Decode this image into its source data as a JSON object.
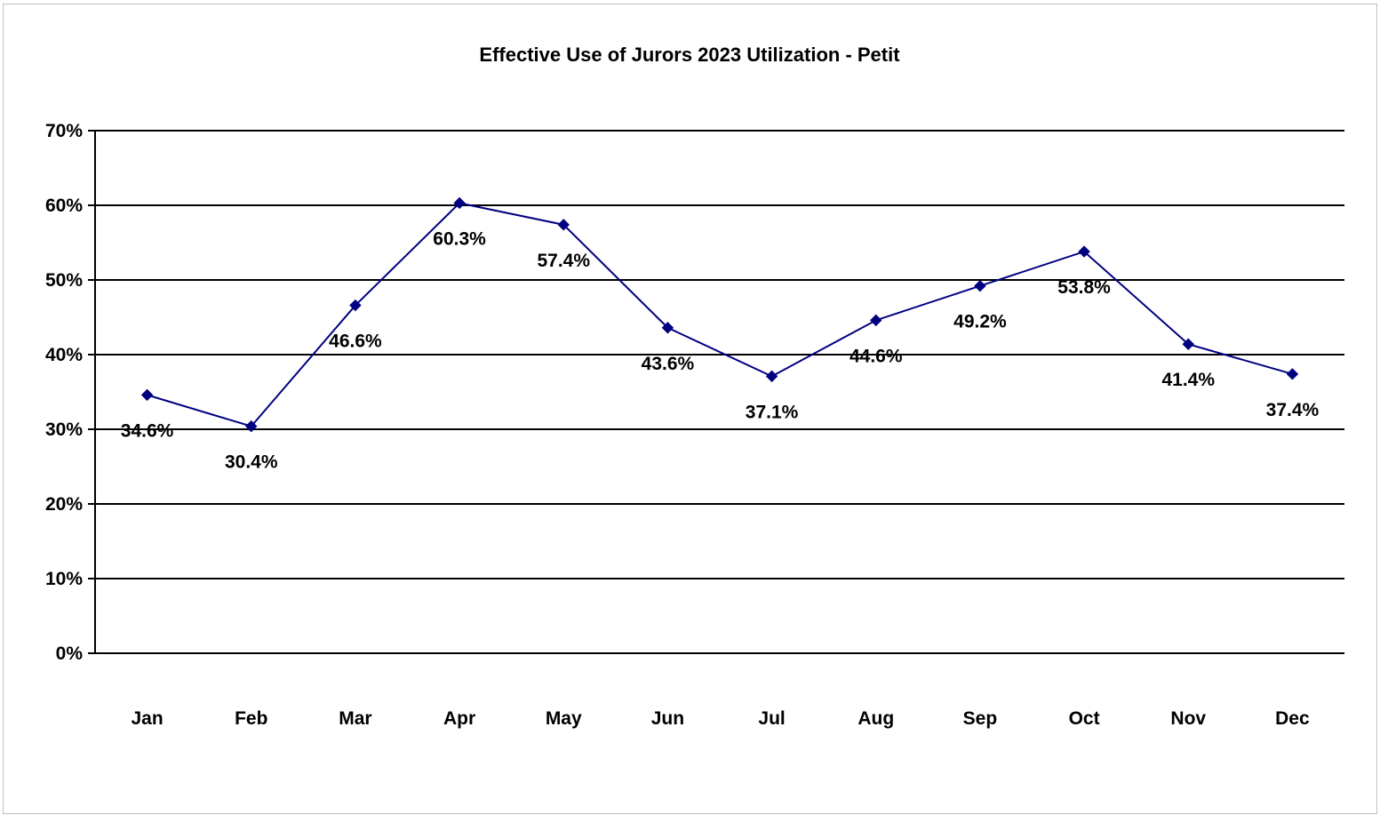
{
  "chart_data": {
    "type": "line",
    "title": "Effective Use of Jurors 2023 Utilization - Petit",
    "xlabel": "",
    "ylabel": "",
    "categories": [
      "Jan",
      "Feb",
      "Mar",
      "Apr",
      "May",
      "Jun",
      "Jul",
      "Aug",
      "Sep",
      "Oct",
      "Nov",
      "Dec"
    ],
    "series": [
      {
        "values": [
          34.6,
          30.4,
          46.6,
          60.3,
          57.4,
          43.6,
          37.1,
          44.6,
          49.2,
          53.8,
          41.4,
          37.4
        ],
        "labels": [
          "34.6%",
          "30.4%",
          "46.6%",
          "60.3%",
          "57.4%",
          "43.6%",
          "37.1%",
          "44.6%",
          "49.2%",
          "53.8%",
          "41.4%",
          "37.4%"
        ],
        "color": "#000080",
        "marker": "diamond"
      }
    ],
    "ylim": [
      0,
      70
    ],
    "yticks": [
      0,
      10,
      20,
      30,
      40,
      50,
      60,
      70
    ],
    "ytick_labels": [
      "0%",
      "10%",
      "20%",
      "30%",
      "40%",
      "50%",
      "60%",
      "70%"
    ],
    "grid": true,
    "legend": "none",
    "gridline_color": "#000000"
  }
}
